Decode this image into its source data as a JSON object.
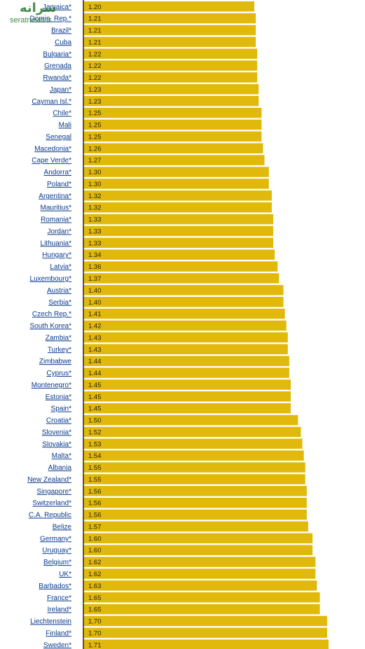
{
  "watermark": {
    "logo_text": "سرانه",
    "site_text": "seratnews.ir"
  },
  "chart_data": {
    "type": "bar",
    "orientation": "horizontal",
    "title": "",
    "xlabel": "",
    "ylabel": "",
    "bar_color": "#e1b90c",
    "label_color": "#0a3a8c",
    "xlim": [
      0,
      1.9
    ],
    "categories": [
      "Jamaica*",
      "Domin. Rep.*",
      "Brazil*",
      "Cuba",
      "Bulgaria*",
      "Grenada",
      "Rwanda*",
      "Japan*",
      "Cayman Isl.*",
      "Chile*",
      "Mali",
      "Senegal",
      "Macedonia*",
      "Cape Verde*",
      "Andorra*",
      "Poland*",
      "Argentina*",
      "Mauritius*",
      "Romania*",
      "Jordan*",
      "Lithuania*",
      "Hungary*",
      "Latvia*",
      "Luxembourg*",
      "Austria*",
      "Serbia*",
      "Czech Rep.*",
      "South Korea*",
      "Zambia*",
      "Turkey*",
      "Zimbabwe",
      "Cyprus*",
      "Montenegro*",
      "Estonia*",
      "Spain*",
      "Croatia*",
      "Slovenia*",
      "Slovakia*",
      "Malta*",
      "Albania",
      "New Zealand*",
      "Singapore*",
      "Switzerland*",
      "C.A. Republic",
      "Belize",
      "Germany*",
      "Uruguay*",
      "Belgium*",
      "UK*",
      "Barbados*",
      "France*",
      "Ireland*",
      "Liechtenstein",
      "Finland*",
      "Sweden*"
    ],
    "values": [
      1.2,
      1.21,
      1.21,
      1.21,
      1.22,
      1.22,
      1.22,
      1.23,
      1.23,
      1.25,
      1.25,
      1.25,
      1.26,
      1.27,
      1.3,
      1.3,
      1.32,
      1.32,
      1.33,
      1.33,
      1.33,
      1.34,
      1.36,
      1.37,
      1.4,
      1.4,
      1.41,
      1.42,
      1.43,
      1.43,
      1.44,
      1.44,
      1.45,
      1.45,
      1.45,
      1.5,
      1.52,
      1.53,
      1.54,
      1.55,
      1.55,
      1.56,
      1.56,
      1.56,
      1.57,
      1.6,
      1.6,
      1.62,
      1.62,
      1.63,
      1.65,
      1.65,
      1.7,
      1.7,
      1.71
    ],
    "value_labels": [
      "1.20",
      "1.21",
      "1.21",
      "1.21",
      "1.22",
      "1.22",
      "1.22",
      "1.23",
      "1.23",
      "1.25",
      "1.25",
      "1.25",
      "1.26",
      "1.27",
      "1.30",
      "1.30",
      "1.32",
      "1.32",
      "1.33",
      "1.33",
      "1.33",
      "1.34",
      "1.36",
      "1.37",
      "1.40",
      "1.40",
      "1.41",
      "1.42",
      "1.43",
      "1.43",
      "1.44",
      "1.44",
      "1.45",
      "1.45",
      "1.45",
      "1.50",
      "1.52",
      "1.53",
      "1.54",
      "1.55",
      "1.55",
      "1.56",
      "1.56",
      "1.56",
      "1.57",
      "1.60",
      "1.60",
      "1.62",
      "1.62",
      "1.63",
      "1.65",
      "1.65",
      "1.70",
      "1.70",
      "1.71"
    ]
  }
}
